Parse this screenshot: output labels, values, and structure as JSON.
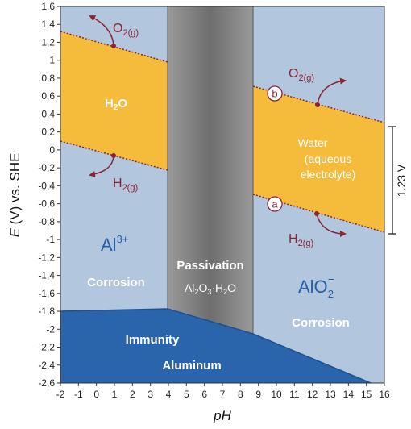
{
  "axes": {
    "y_title": "E (V) vs. SHE",
    "y_title_italic": "E",
    "y_title_rest": " (V) vs. SHE",
    "x_title": "pH",
    "y_ticks": [
      "1,6",
      "1,4",
      "1,2",
      "1",
      "0,8",
      "0,6",
      "0,4",
      "0,2",
      "0",
      "-0,2",
      "-0,4",
      "-0,6",
      "-0,8",
      "-1",
      "-1,2",
      "-1,4",
      "-1,6",
      "-1,8",
      "-2",
      "-2,2",
      "-2,4",
      "-2,6"
    ],
    "x_ticks": [
      "-2",
      "-1",
      "0",
      "1",
      "2",
      "3",
      "4",
      "5",
      "6",
      "7",
      "8",
      "9",
      "10",
      "11",
      "12",
      "13",
      "14",
      "15",
      "16"
    ],
    "x_range": [
      -2,
      16
    ],
    "y_range": [
      -2.6,
      1.6
    ]
  },
  "colors": {
    "corrosion_bg": "#b2c6dd",
    "water_band": "#f5bc3c",
    "passivation": "#7f7f7f",
    "immunity": "#2a65ac",
    "maroon": "#8b2335"
  },
  "labels": {
    "water_left": "H2O",
    "water_left_main": "H",
    "water_left_sub": "2",
    "water_left_tail": "O",
    "water_right_1": "Water",
    "water_right_2": "(aqueous",
    "water_right_3": "electrolyte)",
    "al_ion_base": "Al",
    "al_ion_sup": "3+",
    "corrosion_left": "Corrosion",
    "passivation": "Passivation",
    "passivation_formula": "Al2O3·H2O",
    "alo2_base": "AlO",
    "alo2_sub": "2",
    "alo2_sup": "−",
    "corrosion_right": "Corrosion",
    "immunity": "Immunity",
    "aluminum": "Aluminum",
    "o2_left": "O2(g)",
    "h2_left": "H2(g)",
    "o2_right": "O2(g)",
    "h2_right": "H2(g)",
    "gas_o": "O",
    "gas_h": "H",
    "gas_sub": "2(g)",
    "circle_b": "b",
    "circle_a": "a",
    "gap_label": "1.23 V"
  }
}
